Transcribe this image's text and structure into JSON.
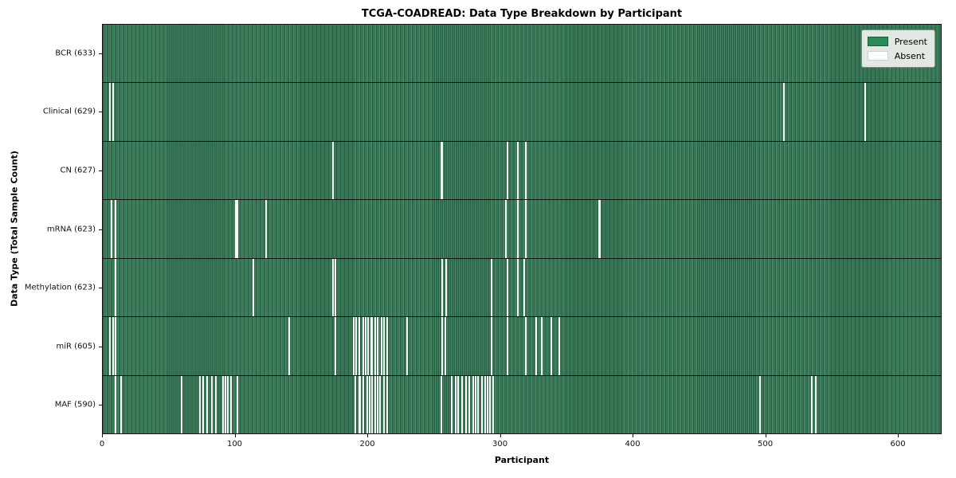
{
  "title": "TCGA-COADREAD: Data Type Breakdown by Participant",
  "xlabel": "Participant",
  "ylabel": "Data Type (Total Sample Count)",
  "legend": {
    "present_label": "Present",
    "absent_label": "Absent"
  },
  "colors": {
    "present": "#2e8b57",
    "present_stripe_dark": "#285e44",
    "present_stripe_light": "#4a8f69",
    "absent": "#ffffff",
    "plot_border": "#141414"
  },
  "chart_data": {
    "type": "heatmap",
    "title": "TCGA-COADREAD: Data Type Breakdown by Participant",
    "xlabel": "Participant",
    "ylabel": "Data Type (Total Sample Count)",
    "legend_entries": [
      {
        "label": "Present",
        "color": "#2e8b57"
      },
      {
        "label": "Absent",
        "color": "#ffffff"
      }
    ],
    "legend_position": "upper right",
    "x_axis": {
      "min": 0,
      "max": 633,
      "ticks": [
        0,
        100,
        200,
        300,
        400,
        500,
        600
      ]
    },
    "n_participants": 633,
    "rows": [
      {
        "label": "BCR (633)",
        "name": "BCR",
        "total": 633,
        "absent": []
      },
      {
        "label": "Clinical (629)",
        "name": "Clinical",
        "total": 629,
        "absent": [
          5,
          7,
          514,
          575
        ]
      },
      {
        "label": "CN (627)",
        "name": "CN",
        "total": 627,
        "absent": [
          173,
          255,
          256,
          305,
          313,
          319
        ]
      },
      {
        "label": "mRNA (623)",
        "name": "mRNA",
        "total": 623,
        "absent": [
          6,
          9,
          100,
          101,
          123,
          304,
          313,
          319,
          374,
          375
        ]
      },
      {
        "label": "Methylation (623)",
        "name": "Methylation",
        "total": 623,
        "absent": [
          9,
          113,
          173,
          175,
          256,
          259,
          293,
          305,
          313,
          318
        ]
      },
      {
        "label": "miR (605)",
        "name": "miR",
        "total": 605,
        "absent": [
          5,
          7,
          9,
          140,
          175,
          189,
          191,
          193,
          196,
          198,
          200,
          202,
          203,
          205,
          207,
          210,
          212,
          214,
          229,
          256,
          258,
          293,
          305,
          319,
          327,
          331,
          338,
          344
        ]
      },
      {
        "label": "MAF (590)",
        "name": "MAF",
        "total": 590,
        "absent": [
          9,
          13,
          59,
          73,
          75,
          78,
          82,
          85,
          90,
          92,
          94,
          96,
          101,
          190,
          193,
          194,
          196,
          199,
          201,
          203,
          205,
          207,
          209,
          212,
          214,
          255,
          263,
          266,
          268,
          271,
          274,
          276,
          279,
          281,
          283,
          286,
          288,
          290,
          292,
          294,
          496,
          535,
          538
        ]
      }
    ]
  }
}
